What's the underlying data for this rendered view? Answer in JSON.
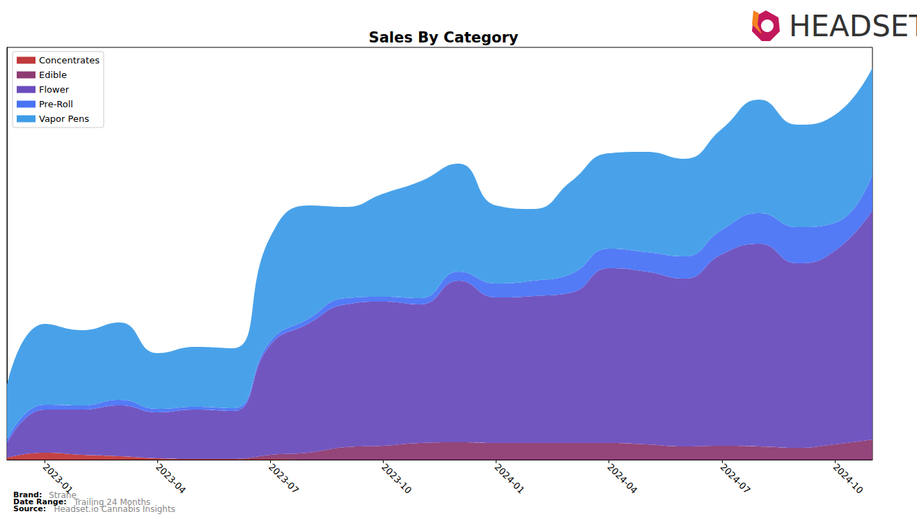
{
  "chart_data": {
    "type": "area",
    "title": "Sales By Category",
    "stacked": true,
    "legend": "upper left",
    "tick_labels": "x",
    "grid": false,
    "categories": [
      null,
      "2023-01",
      null,
      null,
      "2023-04",
      null,
      null,
      "2023-07",
      null,
      null,
      "2023-10",
      null,
      null,
      "2024-01",
      null,
      null,
      "2024-04",
      null,
      null,
      "2024-07",
      null,
      null,
      "2024-10",
      null
    ],
    "ylim": [
      0,
      592
    ],
    "series": [
      {
        "name": "Concentrates",
        "color": "#c0393b",
        "values": [
          3,
          10,
          7,
          5,
          2,
          1,
          1,
          1,
          0,
          0,
          0,
          0,
          0,
          0,
          0,
          0,
          0,
          0,
          0,
          0,
          0,
          0,
          0,
          0
        ]
      },
      {
        "name": "Edible",
        "color": "#8e3b72",
        "values": [
          0,
          0,
          0,
          0,
          0,
          0,
          0,
          6,
          10,
          18,
          20,
          24,
          25,
          24,
          24,
          24,
          24,
          22,
          19,
          20,
          19,
          17,
          22,
          29
        ]
      },
      {
        "name": "Flower",
        "color": "#6a4dbd",
        "values": [
          20,
          62,
          65,
          73,
          66,
          71,
          69,
          158,
          185,
          205,
          207,
          199,
          232,
          209,
          211,
          216,
          251,
          248,
          241,
          275,
          291,
          265,
          278,
          329
        ]
      },
      {
        "name": "Pre-Roll",
        "color": "#4a74f5",
        "values": [
          5,
          7,
          6,
          8,
          5,
          4,
          4,
          5,
          7,
          9,
          7,
          9,
          13,
          20,
          22,
          27,
          28,
          28,
          32,
          35,
          44,
          52,
          40,
          52
        ]
      },
      {
        "name": "Vapor Pens",
        "color": "#3f9de8",
        "values": [
          79,
          116,
          108,
          111,
          80,
          86,
          86,
          150,
          163,
          131,
          148,
          168,
          155,
          112,
          103,
          133,
          137,
          144,
          140,
          145,
          163,
          147,
          155,
          153
        ]
      }
    ],
    "logo_text": "HEADSET",
    "footer": [
      {
        "label": "Brand:",
        "value": "Strane"
      },
      {
        "label": "Date Range:",
        "value": "Trailing 24 Months"
      },
      {
        "label": "Source:",
        "value": "Headset.io Cannabis Insights"
      }
    ]
  }
}
